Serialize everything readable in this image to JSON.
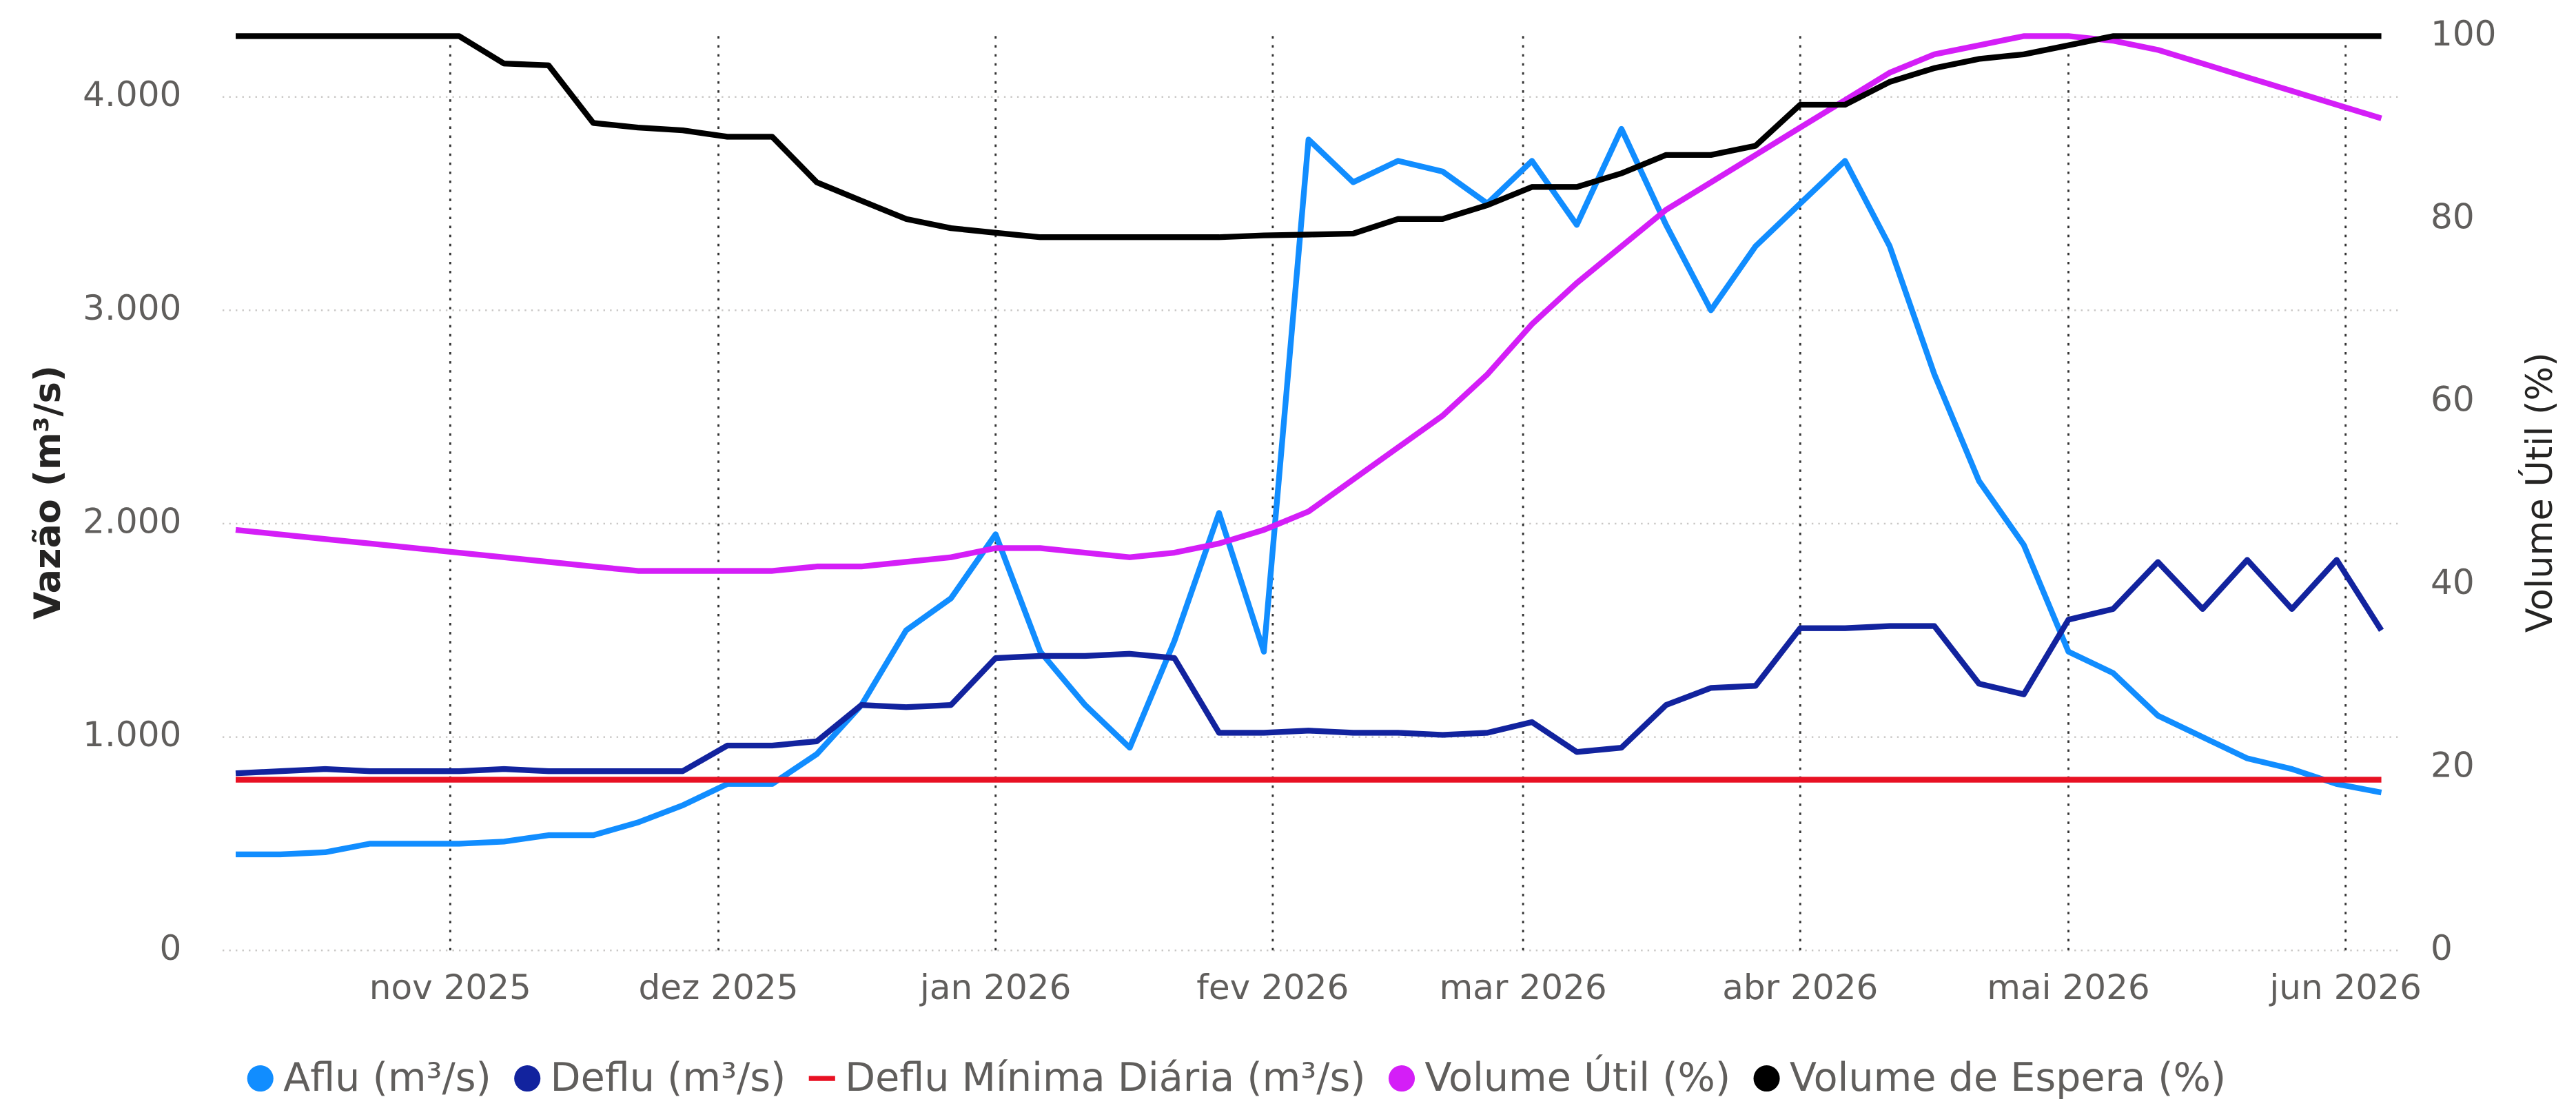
{
  "chart_data": {
    "type": "line",
    "x": [
      "2025-10-08",
      "2025-10-13",
      "2025-10-18",
      "2025-10-23",
      "2025-10-28",
      "2025-11-02",
      "2025-11-07",
      "2025-11-12",
      "2025-11-17",
      "2025-11-22",
      "2025-11-27",
      "2025-12-02",
      "2025-12-07",
      "2025-12-12",
      "2025-12-17",
      "2025-12-22",
      "2025-12-27",
      "2026-01-01",
      "2026-01-06",
      "2026-01-11",
      "2026-01-16",
      "2026-01-21",
      "2026-01-26",
      "2026-01-31",
      "2026-02-05",
      "2026-02-10",
      "2026-02-15",
      "2026-02-20",
      "2026-02-25",
      "2026-03-02",
      "2026-03-07",
      "2026-03-12",
      "2026-03-17",
      "2026-03-22",
      "2026-03-27",
      "2026-04-01",
      "2026-04-06",
      "2026-04-11",
      "2026-04-16",
      "2026-04-21",
      "2026-04-26",
      "2026-05-01",
      "2026-05-06",
      "2026-05-11",
      "2026-05-16",
      "2026-05-21",
      "2026-05-26",
      "2026-05-31",
      "2026-06-05"
    ],
    "xlim": [
      "2025-10-08",
      "2026-06-05"
    ],
    "xticks": [
      {
        "value": "2025-11-01",
        "label": "nov 2025"
      },
      {
        "value": "2025-12-01",
        "label": "dez 2025"
      },
      {
        "value": "2026-01-01",
        "label": "jan 2026"
      },
      {
        "value": "2026-02-01",
        "label": "fev 2026"
      },
      {
        "value": "2026-03-01",
        "label": "mar 2026"
      },
      {
        "value": "2026-04-01",
        "label": "abr 2026"
      },
      {
        "value": "2026-05-01",
        "label": "mai 2026"
      },
      {
        "value": "2026-06-01",
        "label": "jun 2026"
      }
    ],
    "y_label": "Vazão (m³/s)",
    "y2_label": "Volume Útil (%)",
    "ylim": [
      0,
      4285
    ],
    "yticks": [
      0,
      {
        "value": 1000,
        "label": "1.000"
      },
      {
        "value": 2000,
        "label": "2.000"
      },
      {
        "value": 3000,
        "label": "3.000"
      },
      {
        "value": 4000,
        "label": "4.000"
      }
    ],
    "y2lim": [
      0,
      100
    ],
    "y2ticks": [
      0,
      20,
      40,
      60,
      80,
      100
    ],
    "grid": true,
    "series": [
      {
        "name": "Aflu (m³/s)",
        "color": "#118dff",
        "values": [
          450,
          450,
          460,
          500,
          500,
          500,
          510,
          540,
          540,
          600,
          680,
          780,
          780,
          920,
          1150,
          1500,
          1650,
          1950,
          1400,
          1150,
          950,
          1450,
          2050,
          1400,
          3800,
          3600,
          3700,
          3650,
          3500,
          3700,
          3400,
          3850,
          3400,
          3000,
          3300,
          3500,
          3700,
          3300,
          2700,
          2200,
          1900,
          1400,
          1300,
          1100,
          1000,
          900,
          850,
          780,
          740
        ]
      },
      {
        "name": "Deflu (m³/s)",
        "color": "#12239e",
        "values": [
          830,
          840,
          850,
          840,
          840,
          840,
          850,
          840,
          840,
          840,
          840,
          960,
          960,
          980,
          1150,
          1140,
          1150,
          1370,
          1380,
          1380,
          1390,
          1370,
          1020,
          1020,
          1030,
          1020,
          1020,
          1010,
          1020,
          1070,
          930,
          950,
          1150,
          1230,
          1240,
          1510,
          1510,
          1520,
          1520,
          1250,
          1200,
          1550,
          1600,
          1820,
          1600,
          1830,
          1600,
          1830,
          1500
        ]
      },
      {
        "name": "Deflu Mínima Diária (m³/s)",
        "color": "#e81123",
        "values": [
          800,
          800,
          800,
          800,
          800,
          800,
          800,
          800,
          800,
          800,
          800,
          800,
          800,
          800,
          800,
          800,
          800,
          800,
          800,
          800,
          800,
          800,
          800,
          800,
          800,
          800,
          800,
          800,
          800,
          800,
          800,
          800,
          800,
          800,
          800,
          800,
          800,
          800,
          800,
          800,
          800,
          800,
          800,
          800,
          800,
          800,
          800,
          800,
          800
        ]
      },
      {
        "name": "Volume Útil (%)",
        "color": "#d41ef7",
        "axis": "y2",
        "values": [
          46,
          45.5,
          45,
          44.5,
          44,
          43.5,
          43,
          42.5,
          42,
          41.5,
          41.5,
          41.5,
          41.5,
          42,
          42,
          42.5,
          43,
          44,
          44,
          43.5,
          43,
          43.5,
          44.5,
          46,
          48,
          51.5,
          55,
          58.5,
          63,
          68.5,
          73,
          77,
          81,
          84,
          87,
          90,
          93,
          96,
          98,
          99,
          100,
          100,
          99.5,
          98.5,
          97,
          95.5,
          94,
          92.5,
          91
        ]
      },
      {
        "name": "Volume de Espera (%)",
        "color": "#000000",
        "axis": "y2",
        "values": [
          100,
          100,
          100,
          100,
          100,
          100,
          97,
          96.8,
          90.5,
          90,
          89.7,
          89,
          89,
          84,
          82,
          80,
          79,
          78.5,
          78,
          78,
          78,
          78,
          78,
          78.2,
          78.3,
          78.4,
          80,
          80,
          81.5,
          83.5,
          83.5,
          85,
          87,
          87,
          88,
          92.5,
          92.5,
          95,
          96.5,
          97.5,
          98,
          99,
          100,
          100,
          100,
          100,
          100,
          100,
          100
        ]
      }
    ]
  }
}
